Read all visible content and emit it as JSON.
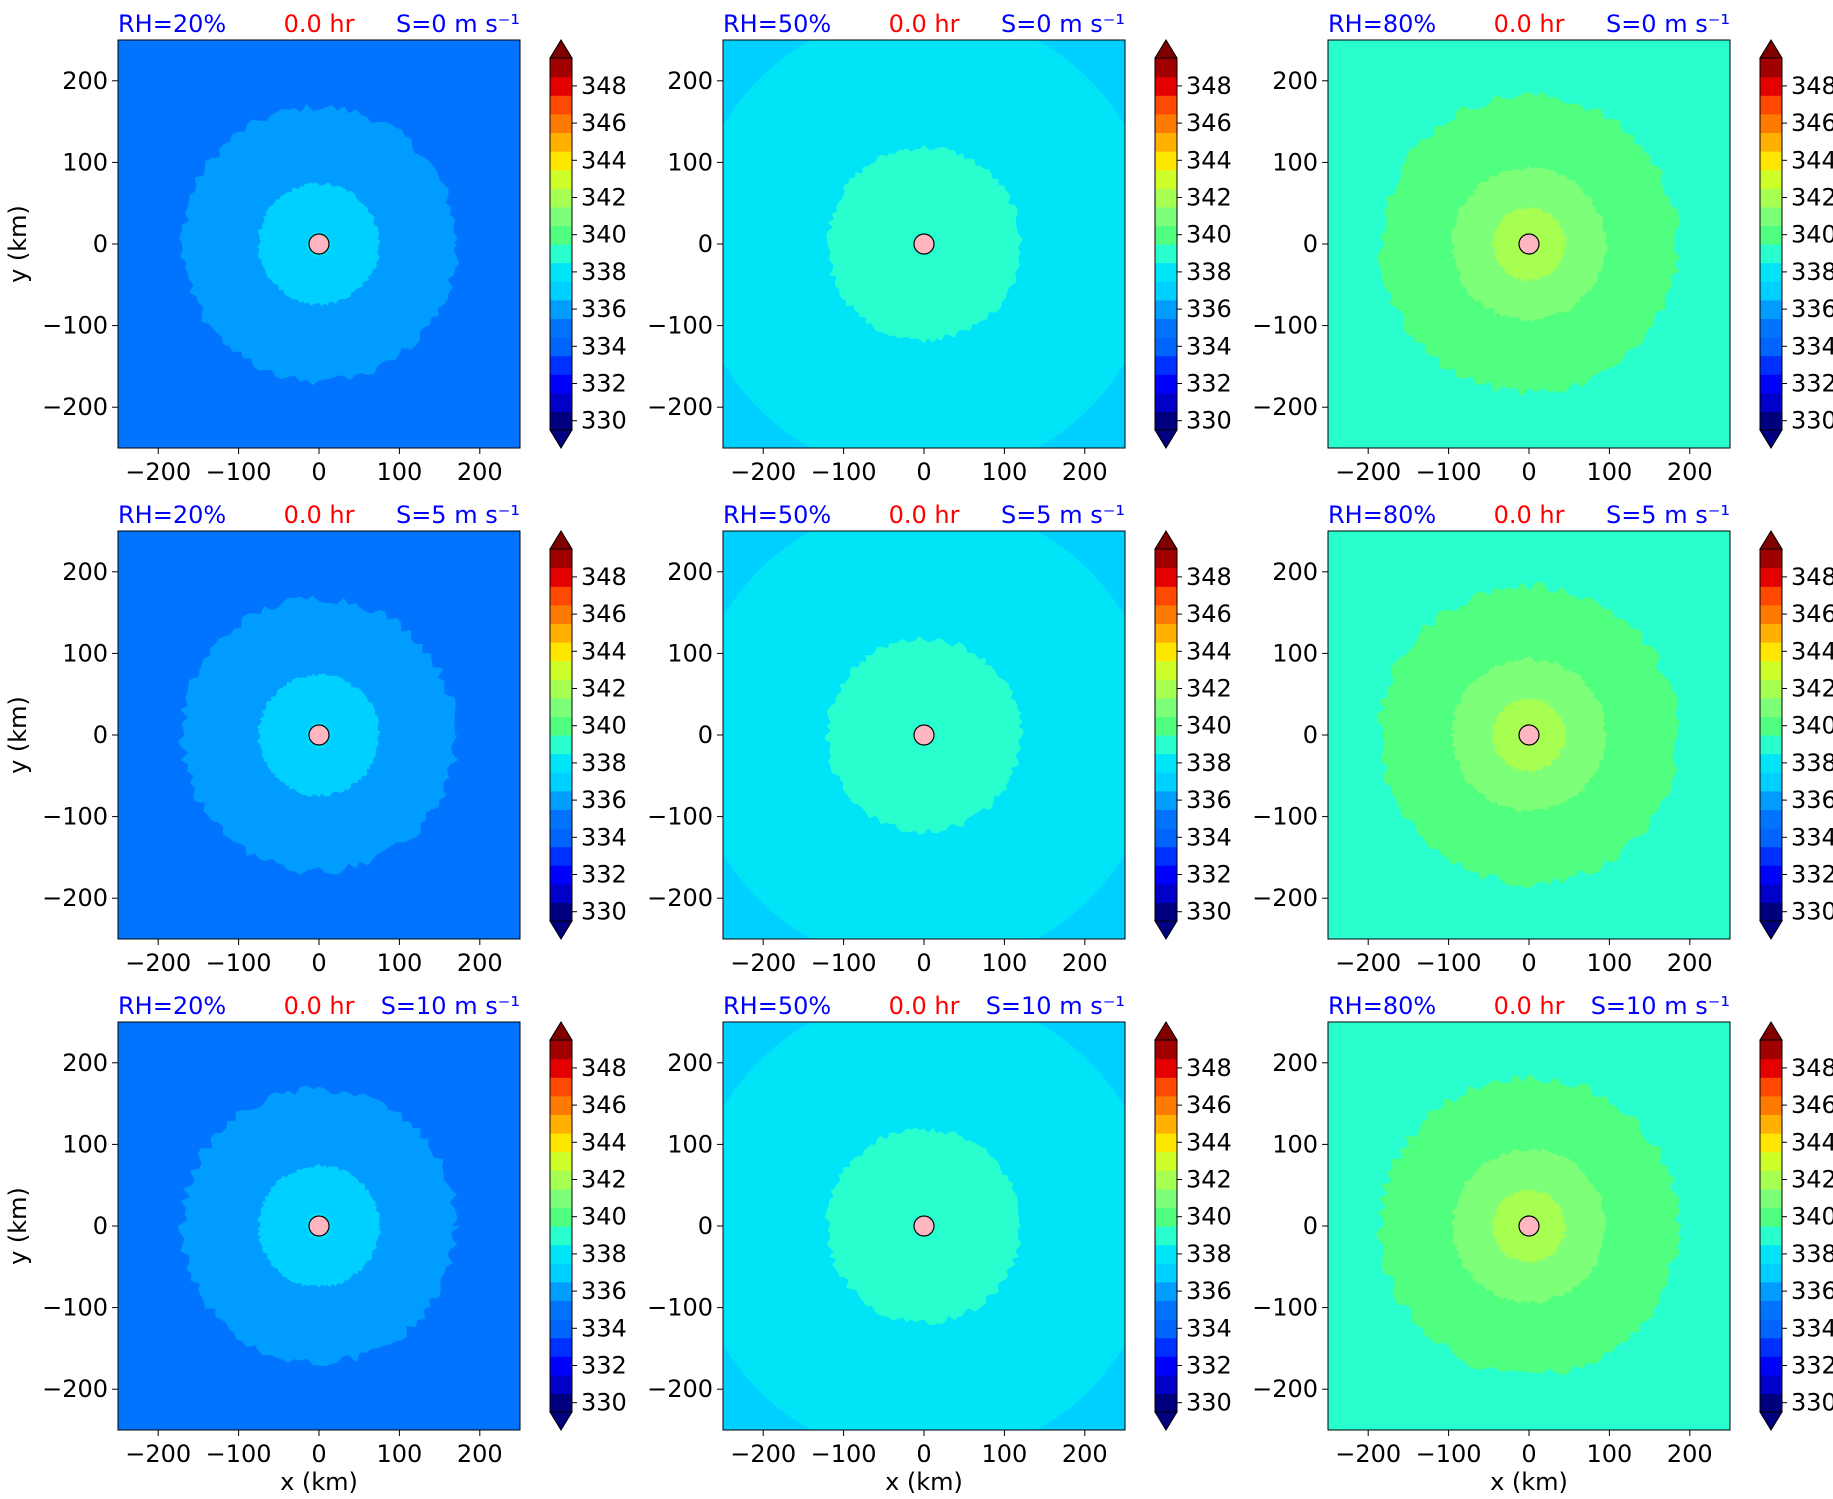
{
  "chart_data": [
    {
      "type": "heatmap",
      "row": 0,
      "col": 0,
      "rh_label": "RH=20%",
      "time_label": "0.0 hr",
      "shear_label": "S=0 m s⁻¹",
      "xlabel": "",
      "ylabel": "y (km)",
      "xlim": [
        -250,
        250
      ],
      "ylim": [
        -250,
        250
      ],
      "xticks": [
        "−200",
        "−100",
        "0",
        "100",
        "200"
      ],
      "yticks": [
        "−200",
        "−100",
        "0",
        "100",
        "200"
      ],
      "background_value": 335,
      "rings": [
        {
          "radius_km": 170,
          "value": 336
        },
        {
          "radius_km": 75,
          "value": 337
        },
        {
          "radius_km": 15,
          "value": 338
        }
      ],
      "center_marker": {
        "x": 0,
        "y": 0
      }
    },
    {
      "type": "heatmap",
      "row": 0,
      "col": 1,
      "rh_label": "RH=50%",
      "time_label": "0.0 hr",
      "shear_label": "S=0 m s⁻¹",
      "xlabel": "",
      "ylabel": "",
      "xlim": [
        -250,
        250
      ],
      "ylim": [
        -250,
        250
      ],
      "xticks": [
        "−200",
        "−100",
        "0",
        "100",
        "200"
      ],
      "yticks": [
        "−200",
        "−100",
        "0",
        "100",
        "200"
      ],
      "background_value": 337,
      "rings": [
        {
          "radius_km": 290,
          "value": 338
        },
        {
          "radius_km": 120,
          "value": 339
        },
        {
          "radius_km": 60,
          "value": 339.5
        }
      ],
      "center_marker": {
        "x": 0,
        "y": 0
      }
    },
    {
      "type": "heatmap",
      "row": 0,
      "col": 2,
      "rh_label": "RH=80%",
      "time_label": "0.0 hr",
      "shear_label": "S=0 m s⁻¹",
      "xlabel": "",
      "ylabel": "",
      "xlim": [
        -250,
        250
      ],
      "ylim": [
        -250,
        250
      ],
      "xticks": [
        "−200",
        "−100",
        "0",
        "100",
        "200"
      ],
      "yticks": [
        "−200",
        "−100",
        "0",
        "100",
        "200"
      ],
      "background_value": 339.5,
      "rings": [
        {
          "radius_km": 185,
          "value": 340.5
        },
        {
          "radius_km": 95,
          "value": 341.5
        },
        {
          "radius_km": 45,
          "value": 342
        }
      ],
      "center_marker": {
        "x": 0,
        "y": 0
      }
    },
    {
      "type": "heatmap",
      "row": 1,
      "col": 0,
      "rh_label": "RH=20%",
      "time_label": "0.0 hr",
      "shear_label": "S=5 m s⁻¹",
      "xlabel": "",
      "ylabel": "y (km)",
      "xlim": [
        -250,
        250
      ],
      "ylim": [
        -250,
        250
      ],
      "xticks": [
        "−200",
        "−100",
        "0",
        "100",
        "200"
      ],
      "yticks": [
        "−200",
        "−100",
        "0",
        "100",
        "200"
      ],
      "background_value": 335,
      "rings": [
        {
          "radius_km": 170,
          "value": 336
        },
        {
          "radius_km": 75,
          "value": 337
        },
        {
          "radius_km": 15,
          "value": 338
        }
      ],
      "center_marker": {
        "x": 0,
        "y": 0
      }
    },
    {
      "type": "heatmap",
      "row": 1,
      "col": 1,
      "rh_label": "RH=50%",
      "time_label": "0.0 hr",
      "shear_label": "S=5 m s⁻¹",
      "xlabel": "",
      "ylabel": "",
      "xlim": [
        -250,
        250
      ],
      "ylim": [
        -250,
        250
      ],
      "xticks": [
        "−200",
        "−100",
        "0",
        "100",
        "200"
      ],
      "yticks": [
        "−200",
        "−100",
        "0",
        "100",
        "200"
      ],
      "background_value": 337,
      "rings": [
        {
          "radius_km": 290,
          "value": 338
        },
        {
          "radius_km": 120,
          "value": 339
        },
        {
          "radius_km": 60,
          "value": 339.5
        }
      ],
      "center_marker": {
        "x": 0,
        "y": 0
      }
    },
    {
      "type": "heatmap",
      "row": 1,
      "col": 2,
      "rh_label": "RH=80%",
      "time_label": "0.0 hr",
      "shear_label": "S=5 m s⁻¹",
      "xlabel": "",
      "ylabel": "",
      "xlim": [
        -250,
        250
      ],
      "ylim": [
        -250,
        250
      ],
      "xticks": [
        "−200",
        "−100",
        "0",
        "100",
        "200"
      ],
      "yticks": [
        "−200",
        "−100",
        "0",
        "100",
        "200"
      ],
      "background_value": 339.5,
      "rings": [
        {
          "radius_km": 185,
          "value": 340.5
        },
        {
          "radius_km": 95,
          "value": 341.5
        },
        {
          "radius_km": 45,
          "value": 342
        }
      ],
      "center_marker": {
        "x": 0,
        "y": 0
      }
    },
    {
      "type": "heatmap",
      "row": 2,
      "col": 0,
      "rh_label": "RH=20%",
      "time_label": "0.0 hr",
      "shear_label": "S=10 m s⁻¹",
      "xlabel": "x (km)",
      "ylabel": "y (km)",
      "xlim": [
        -250,
        250
      ],
      "ylim": [
        -250,
        250
      ],
      "xticks": [
        "−200",
        "−100",
        "0",
        "100",
        "200"
      ],
      "yticks": [
        "−200",
        "−100",
        "0",
        "100",
        "200"
      ],
      "background_value": 335,
      "rings": [
        {
          "radius_km": 170,
          "value": 336
        },
        {
          "radius_km": 75,
          "value": 337
        },
        {
          "radius_km": 15,
          "value": 338
        }
      ],
      "center_marker": {
        "x": 0,
        "y": 0
      }
    },
    {
      "type": "heatmap",
      "row": 2,
      "col": 1,
      "rh_label": "RH=50%",
      "time_label": "0.0 hr",
      "shear_label": "S=10 m s⁻¹",
      "xlabel": "x (km)",
      "ylabel": "",
      "xlim": [
        -250,
        250
      ],
      "ylim": [
        -250,
        250
      ],
      "xticks": [
        "−200",
        "−100",
        "0",
        "100",
        "200"
      ],
      "yticks": [
        "−200",
        "−100",
        "0",
        "100",
        "200"
      ],
      "background_value": 337,
      "rings": [
        {
          "radius_km": 290,
          "value": 338
        },
        {
          "radius_km": 120,
          "value": 339
        },
        {
          "radius_km": 60,
          "value": 339.5
        }
      ],
      "center_marker": {
        "x": 0,
        "y": 0
      }
    },
    {
      "type": "heatmap",
      "row": 2,
      "col": 2,
      "rh_label": "RH=80%",
      "time_label": "0.0 hr",
      "shear_label": "S=10 m s⁻¹",
      "xlabel": "x (km)",
      "ylabel": "",
      "xlim": [
        -250,
        250
      ],
      "ylim": [
        -250,
        250
      ],
      "xticks": [
        "−200",
        "−100",
        "0",
        "100",
        "200"
      ],
      "yticks": [
        "−200",
        "−100",
        "0",
        "100",
        "200"
      ],
      "background_value": 339.5,
      "rings": [
        {
          "radius_km": 185,
          "value": 340.5
        },
        {
          "radius_km": 95,
          "value": 341.5
        },
        {
          "radius_km": 45,
          "value": 342
        }
      ],
      "center_marker": {
        "x": 0,
        "y": 0
      }
    }
  ],
  "colorbar": {
    "levels": [
      330,
      331,
      332,
      333,
      334,
      335,
      336,
      337,
      338,
      339,
      340,
      341,
      342,
      343,
      344,
      345,
      346,
      347,
      348,
      349
    ],
    "tick_labels": [
      "330",
      "332",
      "334",
      "336",
      "338",
      "340",
      "342",
      "344",
      "346",
      "348"
    ],
    "extend": "both",
    "colors": [
      "#00007f",
      "#0000c8",
      "#0000ff",
      "#0030ff",
      "#0064ff",
      "#0074ff",
      "#009cff",
      "#00d0ff",
      "#00e4f8",
      "#29ffce",
      "#50ff7f",
      "#7dff7a",
      "#a6ff51",
      "#ceff29",
      "#ffe600",
      "#ffb000",
      "#ff7b00",
      "#ff4800",
      "#e40000",
      "#a00000"
    ],
    "under_color": "#000080",
    "over_color": "#800000"
  },
  "colors": {
    "rh_label": "#0000ff",
    "shear_label": "#0000ff",
    "time_label": "#ff0000",
    "center_marker_fill": "#ffb6c1"
  }
}
